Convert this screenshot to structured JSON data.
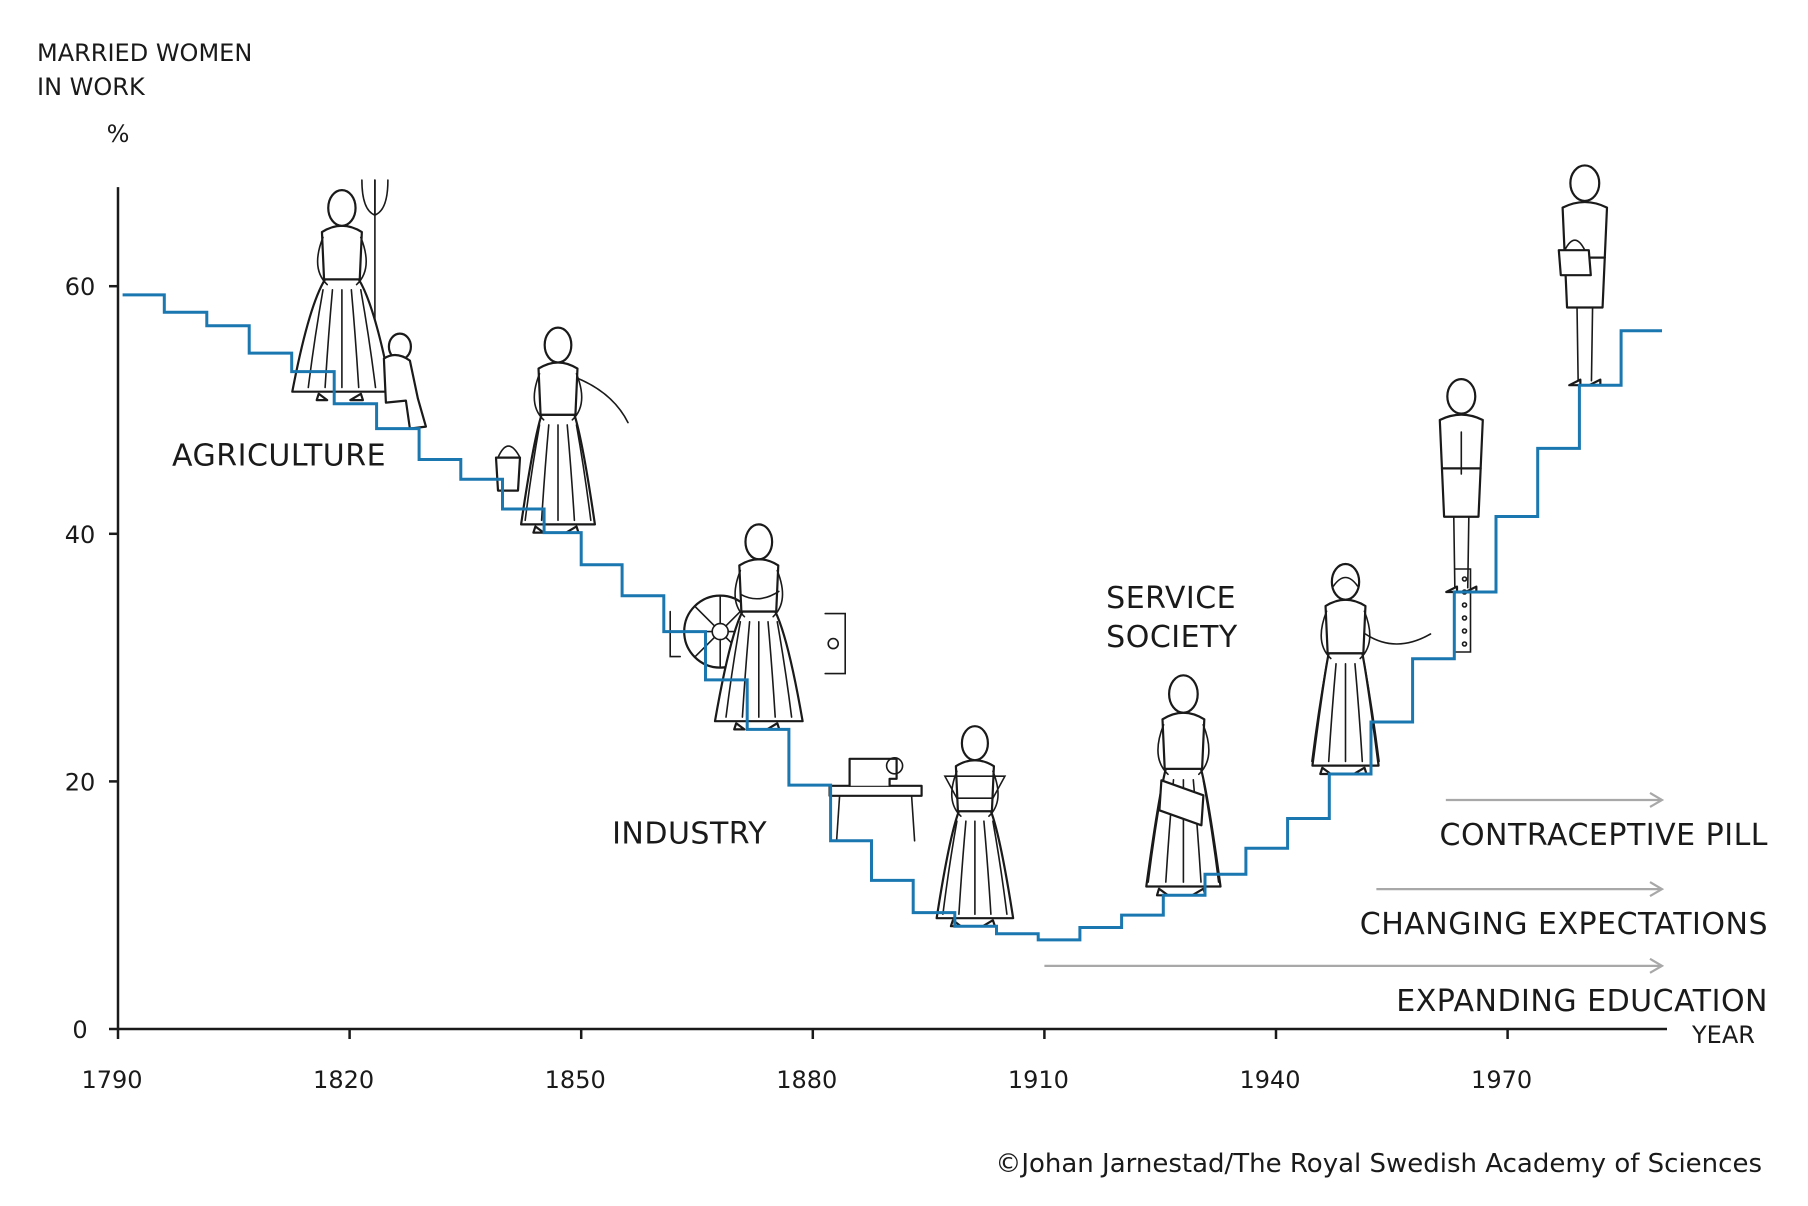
{
  "chart_data": {
    "type": "line",
    "style": "step",
    "ylabel": "MARRIED WOMEN\nIN WORK",
    "yunit": "%",
    "xlabel": "YEAR",
    "xlim": [
      1790,
      1990
    ],
    "ylim": [
      0,
      68
    ],
    "xticks": [
      1790,
      1820,
      1850,
      1880,
      1910,
      1940,
      1970
    ],
    "yticks": [
      0,
      20,
      40,
      60
    ],
    "series": [
      {
        "name": "Married women in work",
        "color": "#1a77b0",
        "steps": [
          {
            "x0": 1790.6,
            "x1": 1796,
            "y": 59.3
          },
          {
            "x0": 1796,
            "x1": 1801.5,
            "y": 57.9
          },
          {
            "x0": 1801.5,
            "x1": 1807,
            "y": 56.8
          },
          {
            "x0": 1807,
            "x1": 1812.5,
            "y": 54.6
          },
          {
            "x0": 1812.5,
            "x1": 1818,
            "y": 53.1
          },
          {
            "x0": 1818,
            "x1": 1823.5,
            "y": 50.5
          },
          {
            "x0": 1823.5,
            "x1": 1829,
            "y": 48.5
          },
          {
            "x0": 1829,
            "x1": 1834.4,
            "y": 46.0
          },
          {
            "x0": 1834.4,
            "x1": 1839.8,
            "y": 44.4
          },
          {
            "x0": 1839.8,
            "x1": 1845.2,
            "y": 42.0
          },
          {
            "x0": 1845.2,
            "x1": 1850,
            "y": 40.1
          },
          {
            "x0": 1850,
            "x1": 1855.3,
            "y": 37.5
          },
          {
            "x0": 1855.3,
            "x1": 1860.7,
            "y": 35.0
          },
          {
            "x0": 1860.7,
            "x1": 1866.1,
            "y": 32.1
          },
          {
            "x0": 1866.1,
            "x1": 1871.5,
            "y": 28.2
          },
          {
            "x0": 1871.5,
            "x1": 1876.9,
            "y": 24.2
          },
          {
            "x0": 1876.9,
            "x1": 1882.3,
            "y": 19.7
          },
          {
            "x0": 1882.3,
            "x1": 1887.6,
            "y": 15.2
          },
          {
            "x0": 1887.6,
            "x1": 1893,
            "y": 12.0
          },
          {
            "x0": 1893,
            "x1": 1898.4,
            "y": 9.4
          },
          {
            "x0": 1898.4,
            "x1": 1903.8,
            "y": 8.3
          },
          {
            "x0": 1903.8,
            "x1": 1909.2,
            "y": 7.7
          },
          {
            "x0": 1909.2,
            "x1": 1914.6,
            "y": 7.2
          },
          {
            "x0": 1914.6,
            "x1": 1920,
            "y": 8.2
          },
          {
            "x0": 1920,
            "x1": 1925.4,
            "y": 9.2
          },
          {
            "x0": 1925.4,
            "x1": 1930.8,
            "y": 10.8
          },
          {
            "x0": 1930.8,
            "x1": 1936.1,
            "y": 12.5
          },
          {
            "x0": 1936.1,
            "x1": 1941.5,
            "y": 14.6
          },
          {
            "x0": 1941.5,
            "x1": 1946.9,
            "y": 17.0
          },
          {
            "x0": 1946.9,
            "x1": 1952.3,
            "y": 20.6
          },
          {
            "x0": 1952.3,
            "x1": 1957.7,
            "y": 24.8
          },
          {
            "x0": 1957.7,
            "x1": 1963.1,
            "y": 29.9
          },
          {
            "x0": 1963.1,
            "x1": 1968.5,
            "y": 35.3
          },
          {
            "x0": 1968.5,
            "x1": 1973.9,
            "y": 41.4
          },
          {
            "x0": 1973.9,
            "x1": 1979.3,
            "y": 46.9
          },
          {
            "x0": 1979.3,
            "x1": 1984.7,
            "y": 52.0
          },
          {
            "x0": 1984.7,
            "x1": 1990,
            "y": 56.4
          }
        ]
      }
    ],
    "annotations": [
      {
        "text": "AGRICULTURE",
        "x": 1797,
        "y": 45.5
      },
      {
        "text": "INDUSTRY",
        "x": 1854,
        "y": 15.0
      },
      {
        "text": "SERVICE\nSOCIETY",
        "x": 1918,
        "y": 34.0
      },
      {
        "text": "CONTRACEPTIVE PILL",
        "arrow_from": 1962,
        "arrow_to": 1990,
        "y": 18.5
      },
      {
        "text": "CHANGING EXPECTATIONS",
        "arrow_from": 1953,
        "arrow_to": 1990,
        "y": 11.3
      },
      {
        "text": "EXPANDING EDUCATION",
        "arrow_from": 1910,
        "arrow_to": 1990,
        "y": 5.1
      }
    ]
  },
  "credit": "©Johan Jarnestad/The Royal Swedish Academy of Sciences",
  "colors": {
    "step_line": "#1a77b0",
    "axis": "#1a1a1a",
    "arrow": "#a8a8a8",
    "text": "#1a1a1a"
  },
  "figures": [
    {
      "icon": "farm-woman-with-pitchfork-icon",
      "x": 1819,
      "y": 50.8
    },
    {
      "icon": "child-sitting-icon",
      "x": 1826,
      "y": 48.5
    },
    {
      "icon": "milkmaid-with-bucket-icon",
      "x": 1847,
      "y": 40.1
    },
    {
      "icon": "spinning-wheel-icon",
      "x": 1868,
      "y": 32.1
    },
    {
      "icon": "factory-woman-icon",
      "x": 1873,
      "y": 24.2
    },
    {
      "icon": "sewing-machine-icon",
      "x": 1888,
      "y": 15.2
    },
    {
      "icon": "seamstress-icon",
      "x": 1901,
      "y": 8.3
    },
    {
      "icon": "woman-with-book-icon",
      "x": 1928,
      "y": 10.8
    },
    {
      "icon": "telephone-operator-icon",
      "x": 1949,
      "y": 20.6
    },
    {
      "icon": "office-woman-icon",
      "x": 1964,
      "y": 35.3
    },
    {
      "icon": "woman-with-handbag-icon",
      "x": 1980,
      "y": 52.0
    }
  ]
}
